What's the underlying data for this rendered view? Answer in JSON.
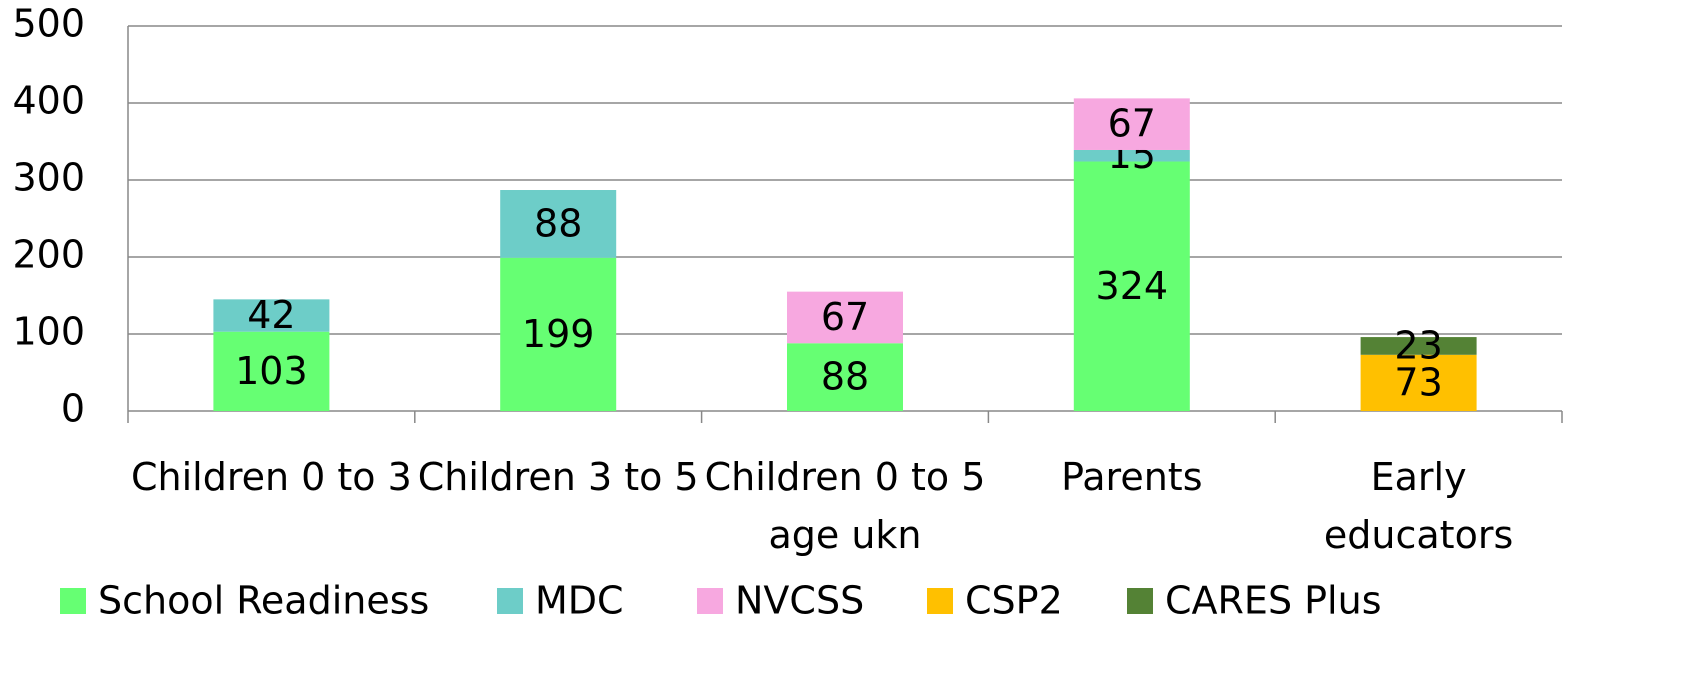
{
  "chart_data": {
    "type": "stacked_bar",
    "categories": [
      "Children 0 to 3",
      "Children 3 to 5",
      "Children 0 to 5\nage ukn",
      "Parents",
      "Early\neducators"
    ],
    "series": [
      {
        "name": "School Readiness",
        "color": "#66ff73",
        "values": [
          103,
          199,
          88,
          324,
          null
        ]
      },
      {
        "name": "MDC",
        "color": "#6dcdc8",
        "values": [
          42,
          88,
          null,
          15,
          null
        ]
      },
      {
        "name": "NVCSS",
        "color": "#f7a8e0",
        "values": [
          null,
          null,
          67,
          67,
          null
        ]
      },
      {
        "name": "CSP2",
        "color": "#ffc000",
        "values": [
          null,
          null,
          null,
          null,
          73
        ]
      },
      {
        "name": "CARES Plus",
        "color": "#548235",
        "values": [
          null,
          null,
          null,
          null,
          23
        ]
      }
    ],
    "ylim": [
      0,
      500
    ],
    "yticks": [
      0,
      100,
      200,
      300,
      400,
      500
    ],
    "grid": true,
    "legend": "bottom"
  }
}
